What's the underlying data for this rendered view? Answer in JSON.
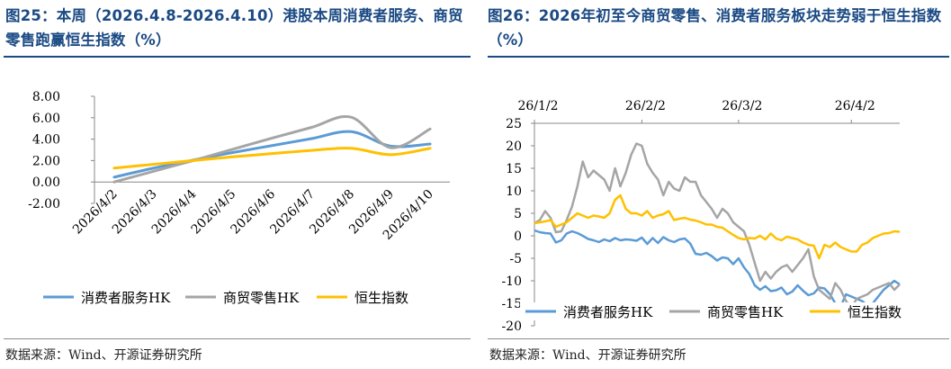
{
  "left": {
    "title": "图25：本周（2026.4.8-2026.4.10）港股本周消费者服务、商贸零售跑赢恒生指数（%）",
    "source": "数据来源：Wind、开源证券研究所",
    "chart_data": {
      "type": "line",
      "categories": [
        "2026/4/2",
        "2026/4/3",
        "2026/4/4",
        "2026/4/5",
        "2026/4/6",
        "2026/4/7",
        "2026/4/8",
        "2026/4/9",
        "2026/4/10"
      ],
      "y_tick_labels": [
        "8.00",
        "6.00",
        "4.00",
        "2.00",
        "0.00",
        "-2.00"
      ],
      "ylim": [
        -2,
        8
      ],
      "series": [
        {
          "name": "消费者服务HK",
          "color": "#5b9bd5",
          "values": [
            0.45,
            1.3,
            2.05,
            2.75,
            3.4,
            4.05,
            4.7,
            3.35,
            3.55
          ]
        },
        {
          "name": "商贸零售HK",
          "color": "#a5a5a5",
          "values": [
            0.0,
            1.0,
            2.0,
            3.05,
            4.1,
            5.1,
            6.05,
            3.2,
            4.95
          ]
        },
        {
          "name": "恒生指数",
          "color": "#ffc000",
          "values": [
            1.3,
            1.65,
            2.0,
            2.35,
            2.65,
            2.95,
            3.15,
            2.55,
            3.15
          ]
        }
      ],
      "legend_position": "bottom"
    }
  },
  "right": {
    "title": "图26：2026年初至今商贸零售、消费者服务板块走势弱于恒生指数（%）",
    "source": "数据来源：Wind、开源证券研究所",
    "chart_data": {
      "type": "line",
      "x_tick_labels": [
        "26/1/2",
        "26/2/2",
        "26/3/2",
        "26/4/2"
      ],
      "x_tick_index": [
        0,
        20,
        38,
        59
      ],
      "y_tick_labels": [
        "25",
        "20",
        "15",
        "10",
        "5",
        "0",
        "-5",
        "-10",
        "-15",
        "-20"
      ],
      "ylim": [
        -20,
        25
      ],
      "series": [
        {
          "name": "消费者服务HK",
          "color": "#5b9bd5",
          "values": [
            1.2,
            0.8,
            0.6,
            0.5,
            -1.5,
            -1.0,
            0.5,
            1.0,
            0.6,
            0.0,
            -0.7,
            -1.0,
            -1.4,
            -0.8,
            -1.2,
            -0.5,
            -1.0,
            -0.8,
            -0.9,
            -1.1,
            -0.4,
            -1.8,
            -0.5,
            -1.6,
            -0.3,
            -1.0,
            -1.4,
            -0.8,
            -0.6,
            -1.7,
            -4.0,
            -4.2,
            -3.8,
            -4.5,
            -5.5,
            -4.8,
            -5.0,
            -6.3,
            -5.0,
            -7.0,
            -8.5,
            -11.0,
            -12.0,
            -11.2,
            -12.3,
            -12.1,
            -11.5,
            -13.0,
            -12.4,
            -11.0,
            -12.2,
            -13.2,
            -12.8,
            -11.5,
            -11.7,
            -13.0,
            -15.0,
            -15.8,
            -13.0,
            -13.5,
            -14.0,
            -14.5,
            -15.5,
            -15.0,
            -13.5,
            -12.0,
            -11.0,
            -10.0,
            -10.8
          ]
        },
        {
          "name": "商贸零售HK",
          "color": "#a5a5a5",
          "values": [
            2.8,
            3.5,
            5.5,
            4.0,
            0.8,
            1.0,
            3.5,
            6.5,
            11.0,
            16.5,
            13.0,
            14.5,
            13.5,
            12.5,
            10.0,
            15.0,
            11.0,
            14.0,
            18.0,
            20.5,
            20.0,
            16.0,
            14.0,
            12.5,
            9.0,
            12.0,
            10.5,
            10.0,
            13.0,
            12.0,
            12.0,
            9.0,
            7.5,
            6.0,
            4.0,
            6.0,
            5.0,
            3.0,
            2.0,
            1.0,
            -2.0,
            -6.0,
            -10.0,
            -8.0,
            -9.5,
            -8.0,
            -7.0,
            -6.5,
            -8.0,
            -6.5,
            -5.0,
            -3.0,
            -9.0,
            -12.0,
            -13.0,
            -14.0,
            -10.5,
            -12.0,
            -14.5,
            -16.0,
            -14.0,
            -13.5,
            -13.0,
            -12.0,
            -11.5,
            -11.0,
            -10.5,
            -12.0,
            -10.8
          ]
        },
        {
          "name": "恒生指数",
          "color": "#ffc000",
          "values": [
            2.8,
            3.0,
            3.2,
            3.5,
            2.0,
            2.5,
            3.0,
            4.0,
            5.0,
            4.5,
            4.0,
            4.5,
            4.3,
            4.0,
            5.0,
            8.0,
            9.0,
            6.0,
            5.0,
            5.0,
            4.5,
            5.5,
            4.0,
            4.5,
            4.8,
            5.5,
            3.5,
            3.8,
            4.0,
            3.6,
            3.4,
            3.0,
            2.5,
            2.5,
            2.0,
            1.8,
            1.0,
            0.2,
            -0.5,
            -0.8,
            -0.5,
            -0.6,
            0.0,
            -0.8,
            0.5,
            -0.6,
            -1.0,
            -0.2,
            -0.5,
            -0.8,
            -1.5,
            -2.0,
            -2.2,
            -5.0,
            -2.0,
            -2.5,
            -1.5,
            -2.5,
            -3.0,
            -3.5,
            -3.5,
            -2.0,
            -1.5,
            -0.5,
            0.0,
            0.5,
            0.6,
            1.0,
            0.9
          ]
        }
      ],
      "legend_position": "bottom"
    }
  }
}
